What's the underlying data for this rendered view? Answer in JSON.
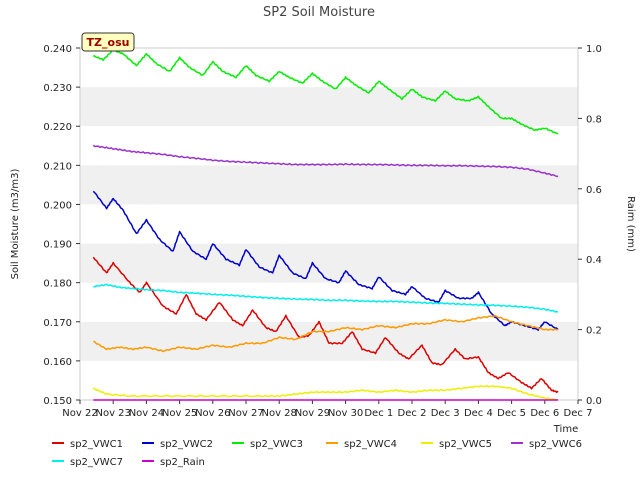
{
  "chart_data": {
    "type": "line",
    "title": "SP2 Soil Moisture",
    "xlabel": "Time",
    "ylabel": "Soil Moisture (m3/m3)",
    "y2label": "Raim (mm)",
    "badge": "TZ_osu",
    "ylim": [
      0.15,
      0.24
    ],
    "y2lim": [
      0.0,
      1.0
    ],
    "yticks": [
      "0.150",
      "0.160",
      "0.170",
      "0.180",
      "0.190",
      "0.200",
      "0.210",
      "0.220",
      "0.230",
      "0.240"
    ],
    "y2ticks": [
      "0.0",
      "0.2",
      "0.4",
      "0.6",
      "0.8",
      "1.0"
    ],
    "xticks": [
      "Nov 22",
      "Nov 23",
      "Nov 24",
      "Nov 25",
      "Nov 26",
      "Nov 27",
      "Nov 28",
      "Nov 29",
      "Nov 30",
      "Dec 1",
      "Dec 2",
      "Dec 3",
      "Dec 4",
      "Dec 5",
      "Dec 6",
      "Dec 7"
    ],
    "x_start": "Nov 22",
    "grid": "horizontal bands",
    "legend_position": "bottom",
    "series": [
      {
        "name": "sp2_VWC1",
        "color": "#dd0000",
        "axis": "left",
        "x": [
          0.4,
          0.8,
          1.0,
          1.5,
          1.8,
          2.0,
          2.5,
          2.9,
          3.2,
          3.5,
          3.8,
          4.2,
          4.6,
          4.9,
          5.2,
          5.6,
          5.9,
          6.2,
          6.6,
          6.9,
          7.2,
          7.5,
          7.9,
          8.2,
          8.5,
          8.9,
          9.2,
          9.6,
          9.9,
          10.3,
          10.6,
          10.9,
          11.3,
          11.6,
          12.0,
          12.3,
          12.6,
          12.9,
          13.3,
          13.6,
          13.9,
          14.2,
          14.4
        ],
        "y": [
          0.1865,
          0.1825,
          0.185,
          0.18,
          0.1775,
          0.18,
          0.174,
          0.172,
          0.177,
          0.172,
          0.1705,
          0.175,
          0.1705,
          0.169,
          0.173,
          0.1685,
          0.1675,
          0.1715,
          0.166,
          0.1665,
          0.17,
          0.1645,
          0.1645,
          0.1675,
          0.163,
          0.162,
          0.166,
          0.162,
          0.1605,
          0.164,
          0.1595,
          0.159,
          0.163,
          0.1605,
          0.161,
          0.157,
          0.1555,
          0.157,
          0.1545,
          0.153,
          0.1555,
          0.1525,
          0.152
        ]
      },
      {
        "name": "sp2_VWC2",
        "color": "#0000cc",
        "axis": "left",
        "x": [
          0.4,
          0.8,
          1.0,
          1.3,
          1.7,
          2.0,
          2.4,
          2.8,
          3.0,
          3.4,
          3.8,
          4.0,
          4.4,
          4.8,
          5.0,
          5.4,
          5.8,
          6.0,
          6.4,
          6.8,
          7.0,
          7.4,
          7.8,
          8.0,
          8.4,
          8.8,
          9.0,
          9.4,
          9.8,
          10.0,
          10.4,
          10.8,
          11.0,
          11.4,
          11.8,
          12.0,
          12.4,
          12.8,
          13.0,
          13.4,
          13.8,
          14.0,
          14.4
        ],
        "y": [
          0.2035,
          0.199,
          0.2015,
          0.1985,
          0.1925,
          0.196,
          0.191,
          0.188,
          0.193,
          0.188,
          0.186,
          0.19,
          0.186,
          0.1845,
          0.1885,
          0.184,
          0.1825,
          0.187,
          0.1825,
          0.181,
          0.185,
          0.181,
          0.18,
          0.183,
          0.1795,
          0.1785,
          0.1815,
          0.178,
          0.177,
          0.179,
          0.176,
          0.175,
          0.178,
          0.176,
          0.176,
          0.1775,
          0.172,
          0.169,
          0.17,
          0.169,
          0.168,
          0.17,
          0.168
        ]
      },
      {
        "name": "sp2_VWC3",
        "color": "#00ee00",
        "axis": "left",
        "x": [
          0.4,
          0.7,
          1.0,
          1.3,
          1.7,
          2.0,
          2.3,
          2.7,
          3.0,
          3.3,
          3.7,
          4.0,
          4.3,
          4.7,
          5.0,
          5.3,
          5.7,
          6.0,
          6.3,
          6.7,
          7.0,
          7.3,
          7.7,
          8.0,
          8.3,
          8.7,
          9.0,
          9.3,
          9.7,
          10.0,
          10.3,
          10.7,
          11.0,
          11.3,
          11.7,
          12.0,
          12.3,
          12.7,
          13.0,
          13.3,
          13.7,
          14.0,
          14.4
        ],
        "y": [
          0.238,
          0.237,
          0.2395,
          0.2385,
          0.2355,
          0.2385,
          0.236,
          0.234,
          0.2375,
          0.235,
          0.233,
          0.2365,
          0.234,
          0.2325,
          0.2355,
          0.233,
          0.2315,
          0.234,
          0.2325,
          0.231,
          0.2335,
          0.2315,
          0.2295,
          0.2325,
          0.2305,
          0.2285,
          0.2315,
          0.2295,
          0.227,
          0.2295,
          0.2275,
          0.2265,
          0.229,
          0.227,
          0.2265,
          0.2275,
          0.225,
          0.222,
          0.222,
          0.2205,
          0.219,
          0.2195,
          0.218
        ]
      },
      {
        "name": "sp2_VWC4",
        "color": "#ff9900",
        "axis": "left",
        "x": [
          0.4,
          0.8,
          1.2,
          1.6,
          2.0,
          2.5,
          3.0,
          3.5,
          4.0,
          4.5,
          5.0,
          5.5,
          6.0,
          6.5,
          7.0,
          7.5,
          8.0,
          8.5,
          9.0,
          9.5,
          10.0,
          10.5,
          11.0,
          11.5,
          12.0,
          12.5,
          13.0,
          13.5,
          14.0,
          14.4
        ],
        "y": [
          0.165,
          0.163,
          0.1635,
          0.163,
          0.1635,
          0.1625,
          0.1635,
          0.163,
          0.164,
          0.1635,
          0.1645,
          0.1645,
          0.166,
          0.1655,
          0.1675,
          0.1675,
          0.1685,
          0.168,
          0.169,
          0.1685,
          0.1695,
          0.1695,
          0.1705,
          0.17,
          0.171,
          0.1715,
          0.17,
          0.169,
          0.168,
          0.168
        ]
      },
      {
        "name": "sp2_VWC5",
        "color": "#eeee00",
        "axis": "left",
        "x": [
          0.4,
          0.8,
          1.5,
          2.5,
          3.5,
          4.5,
          5.5,
          6.0,
          6.5,
          7.0,
          7.5,
          8.0,
          8.5,
          9.0,
          9.5,
          10.0,
          10.5,
          11.0,
          11.5,
          12.0,
          12.5,
          13.0,
          13.5,
          14.0,
          14.4
        ],
        "y": [
          0.153,
          0.1515,
          0.151,
          0.151,
          0.151,
          0.151,
          0.151,
          0.151,
          0.1515,
          0.152,
          0.152,
          0.152,
          0.1525,
          0.152,
          0.1525,
          0.152,
          0.1525,
          0.1525,
          0.153,
          0.1535,
          0.1535,
          0.153,
          0.1515,
          0.1505,
          0.15
        ]
      },
      {
        "name": "sp2_VWC6",
        "color": "#9933cc",
        "axis": "left",
        "x": [
          0.4,
          0.8,
          1.2,
          1.6,
          2.0,
          2.5,
          3.0,
          3.5,
          4.0,
          4.5,
          5.0,
          5.5,
          6.0,
          6.5,
          7.0,
          7.5,
          8.0,
          8.5,
          9.0,
          9.5,
          10.0,
          10.5,
          11.0,
          11.5,
          12.0,
          12.5,
          13.0,
          13.5,
          14.0,
          14.4
        ],
        "y": [
          0.215,
          0.2145,
          0.214,
          0.2135,
          0.2132,
          0.2128,
          0.2122,
          0.2118,
          0.2113,
          0.211,
          0.2108,
          0.2106,
          0.2104,
          0.2102,
          0.2102,
          0.2102,
          0.2103,
          0.2102,
          0.2102,
          0.2101,
          0.21,
          0.21,
          0.2099,
          0.2099,
          0.2098,
          0.2097,
          0.2095,
          0.209,
          0.208,
          0.2072
        ]
      },
      {
        "name": "sp2_VWC7",
        "color": "#00eeee",
        "axis": "left",
        "x": [
          0.4,
          0.8,
          1.2,
          1.6,
          2.0,
          2.5,
          3.0,
          3.5,
          4.0,
          4.5,
          5.0,
          5.5,
          6.0,
          6.5,
          7.0,
          7.5,
          8.0,
          8.5,
          9.0,
          9.5,
          10.0,
          10.5,
          11.0,
          11.5,
          12.0,
          12.5,
          13.0,
          13.5,
          14.0,
          14.4
        ],
        "y": [
          0.179,
          0.1795,
          0.1788,
          0.1785,
          0.1782,
          0.178,
          0.1775,
          0.1773,
          0.177,
          0.1768,
          0.1765,
          0.1762,
          0.176,
          0.1758,
          0.1757,
          0.1755,
          0.1755,
          0.1753,
          0.1752,
          0.1752,
          0.175,
          0.1748,
          0.1747,
          0.1745,
          0.1743,
          0.1742,
          0.174,
          0.1737,
          0.1732,
          0.1725
        ]
      },
      {
        "name": "sp2_Rain",
        "color": "#cc00cc",
        "axis": "right",
        "x": [
          0.4,
          14.4
        ],
        "y": [
          0.0,
          0.0
        ]
      }
    ]
  }
}
